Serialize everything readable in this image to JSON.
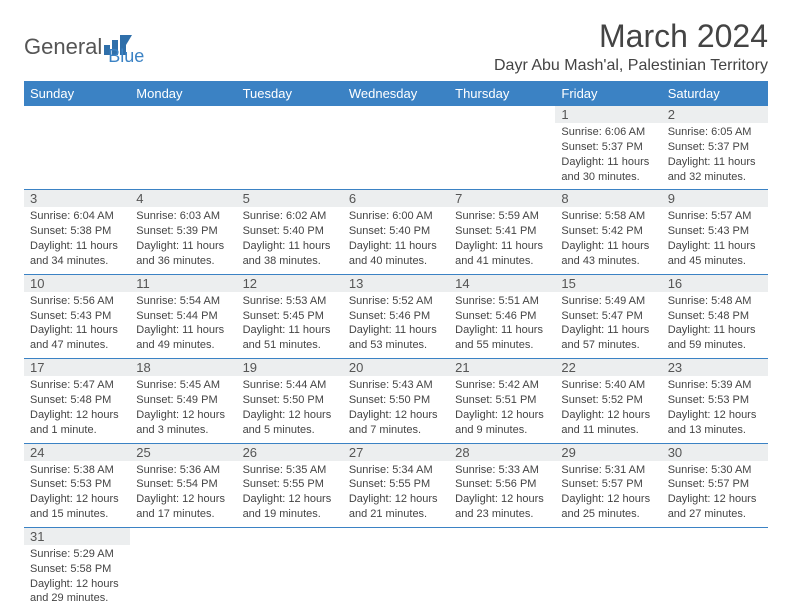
{
  "logo": {
    "part1": "General",
    "part2": "Blue"
  },
  "title": "March 2024",
  "location": "Dayr Abu Mash'al, Palestinian Territory",
  "colors": {
    "header_bg": "#3b82c4",
    "header_text": "#ffffff",
    "daynum_bg": "#eceeef",
    "text": "#444444",
    "border": "#3b82c4"
  },
  "day_headers": [
    "Sunday",
    "Monday",
    "Tuesday",
    "Wednesday",
    "Thursday",
    "Friday",
    "Saturday"
  ],
  "weeks": [
    [
      null,
      null,
      null,
      null,
      null,
      {
        "n": "1",
        "sr": "Sunrise: 6:06 AM",
        "ss": "Sunset: 5:37 PM",
        "dl": "Daylight: 11 hours and 30 minutes."
      },
      {
        "n": "2",
        "sr": "Sunrise: 6:05 AM",
        "ss": "Sunset: 5:37 PM",
        "dl": "Daylight: 11 hours and 32 minutes."
      }
    ],
    [
      {
        "n": "3",
        "sr": "Sunrise: 6:04 AM",
        "ss": "Sunset: 5:38 PM",
        "dl": "Daylight: 11 hours and 34 minutes."
      },
      {
        "n": "4",
        "sr": "Sunrise: 6:03 AM",
        "ss": "Sunset: 5:39 PM",
        "dl": "Daylight: 11 hours and 36 minutes."
      },
      {
        "n": "5",
        "sr": "Sunrise: 6:02 AM",
        "ss": "Sunset: 5:40 PM",
        "dl": "Daylight: 11 hours and 38 minutes."
      },
      {
        "n": "6",
        "sr": "Sunrise: 6:00 AM",
        "ss": "Sunset: 5:40 PM",
        "dl": "Daylight: 11 hours and 40 minutes."
      },
      {
        "n": "7",
        "sr": "Sunrise: 5:59 AM",
        "ss": "Sunset: 5:41 PM",
        "dl": "Daylight: 11 hours and 41 minutes."
      },
      {
        "n": "8",
        "sr": "Sunrise: 5:58 AM",
        "ss": "Sunset: 5:42 PM",
        "dl": "Daylight: 11 hours and 43 minutes."
      },
      {
        "n": "9",
        "sr": "Sunrise: 5:57 AM",
        "ss": "Sunset: 5:43 PM",
        "dl": "Daylight: 11 hours and 45 minutes."
      }
    ],
    [
      {
        "n": "10",
        "sr": "Sunrise: 5:56 AM",
        "ss": "Sunset: 5:43 PM",
        "dl": "Daylight: 11 hours and 47 minutes."
      },
      {
        "n": "11",
        "sr": "Sunrise: 5:54 AM",
        "ss": "Sunset: 5:44 PM",
        "dl": "Daylight: 11 hours and 49 minutes."
      },
      {
        "n": "12",
        "sr": "Sunrise: 5:53 AM",
        "ss": "Sunset: 5:45 PM",
        "dl": "Daylight: 11 hours and 51 minutes."
      },
      {
        "n": "13",
        "sr": "Sunrise: 5:52 AM",
        "ss": "Sunset: 5:46 PM",
        "dl": "Daylight: 11 hours and 53 minutes."
      },
      {
        "n": "14",
        "sr": "Sunrise: 5:51 AM",
        "ss": "Sunset: 5:46 PM",
        "dl": "Daylight: 11 hours and 55 minutes."
      },
      {
        "n": "15",
        "sr": "Sunrise: 5:49 AM",
        "ss": "Sunset: 5:47 PM",
        "dl": "Daylight: 11 hours and 57 minutes."
      },
      {
        "n": "16",
        "sr": "Sunrise: 5:48 AM",
        "ss": "Sunset: 5:48 PM",
        "dl": "Daylight: 11 hours and 59 minutes."
      }
    ],
    [
      {
        "n": "17",
        "sr": "Sunrise: 5:47 AM",
        "ss": "Sunset: 5:48 PM",
        "dl": "Daylight: 12 hours and 1 minute."
      },
      {
        "n": "18",
        "sr": "Sunrise: 5:45 AM",
        "ss": "Sunset: 5:49 PM",
        "dl": "Daylight: 12 hours and 3 minutes."
      },
      {
        "n": "19",
        "sr": "Sunrise: 5:44 AM",
        "ss": "Sunset: 5:50 PM",
        "dl": "Daylight: 12 hours and 5 minutes."
      },
      {
        "n": "20",
        "sr": "Sunrise: 5:43 AM",
        "ss": "Sunset: 5:50 PM",
        "dl": "Daylight: 12 hours and 7 minutes."
      },
      {
        "n": "21",
        "sr": "Sunrise: 5:42 AM",
        "ss": "Sunset: 5:51 PM",
        "dl": "Daylight: 12 hours and 9 minutes."
      },
      {
        "n": "22",
        "sr": "Sunrise: 5:40 AM",
        "ss": "Sunset: 5:52 PM",
        "dl": "Daylight: 12 hours and 11 minutes."
      },
      {
        "n": "23",
        "sr": "Sunrise: 5:39 AM",
        "ss": "Sunset: 5:53 PM",
        "dl": "Daylight: 12 hours and 13 minutes."
      }
    ],
    [
      {
        "n": "24",
        "sr": "Sunrise: 5:38 AM",
        "ss": "Sunset: 5:53 PM",
        "dl": "Daylight: 12 hours and 15 minutes."
      },
      {
        "n": "25",
        "sr": "Sunrise: 5:36 AM",
        "ss": "Sunset: 5:54 PM",
        "dl": "Daylight: 12 hours and 17 minutes."
      },
      {
        "n": "26",
        "sr": "Sunrise: 5:35 AM",
        "ss": "Sunset: 5:55 PM",
        "dl": "Daylight: 12 hours and 19 minutes."
      },
      {
        "n": "27",
        "sr": "Sunrise: 5:34 AM",
        "ss": "Sunset: 5:55 PM",
        "dl": "Daylight: 12 hours and 21 minutes."
      },
      {
        "n": "28",
        "sr": "Sunrise: 5:33 AM",
        "ss": "Sunset: 5:56 PM",
        "dl": "Daylight: 12 hours and 23 minutes."
      },
      {
        "n": "29",
        "sr": "Sunrise: 5:31 AM",
        "ss": "Sunset: 5:57 PM",
        "dl": "Daylight: 12 hours and 25 minutes."
      },
      {
        "n": "30",
        "sr": "Sunrise: 5:30 AM",
        "ss": "Sunset: 5:57 PM",
        "dl": "Daylight: 12 hours and 27 minutes."
      }
    ],
    [
      {
        "n": "31",
        "sr": "Sunrise: 5:29 AM",
        "ss": "Sunset: 5:58 PM",
        "dl": "Daylight: 12 hours and 29 minutes."
      },
      null,
      null,
      null,
      null,
      null,
      null
    ]
  ]
}
